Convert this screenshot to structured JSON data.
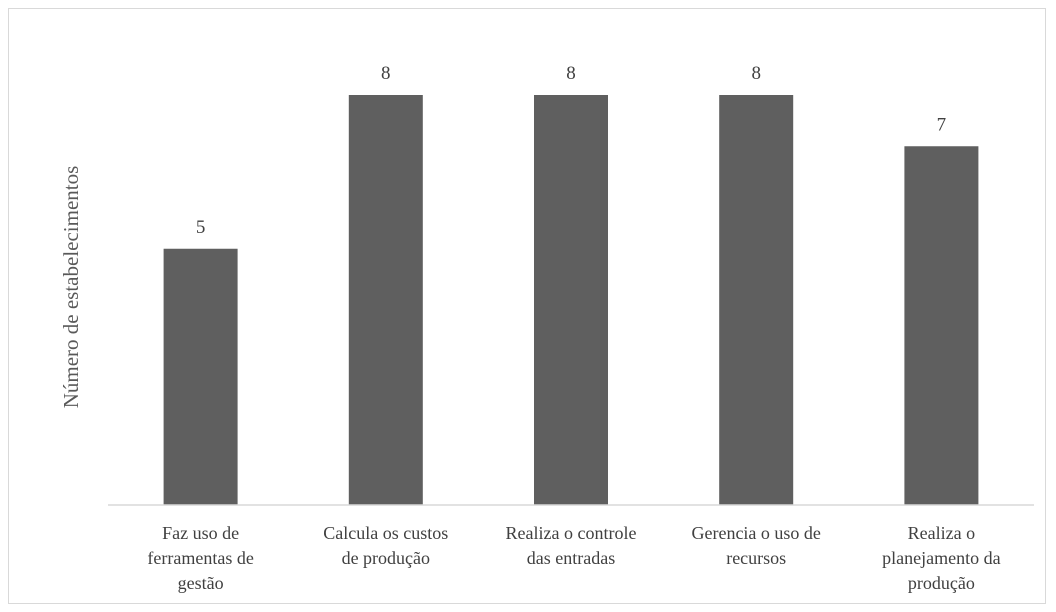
{
  "chart_data": {
    "type": "bar",
    "categories": [
      [
        "Faz uso de",
        "ferramentas de",
        "gestão"
      ],
      [
        "Calcula os custos",
        "de produção"
      ],
      [
        "Realiza o controle",
        "das entradas"
      ],
      [
        "Gerencia o uso de",
        "recursos"
      ],
      [
        "Realiza o",
        "planejamento da",
        "produção"
      ]
    ],
    "values": [
      5,
      8,
      8,
      8,
      7
    ],
    "title": "",
    "xlabel": "",
    "ylabel": "Número de estabelecimentos",
    "ylim": [
      0,
      8
    ],
    "grid": false,
    "legend": "none",
    "data_labels": true,
    "colors": {
      "bar": "#5f5f5f",
      "axis": "#d9d9d9",
      "text": "#404040"
    }
  }
}
